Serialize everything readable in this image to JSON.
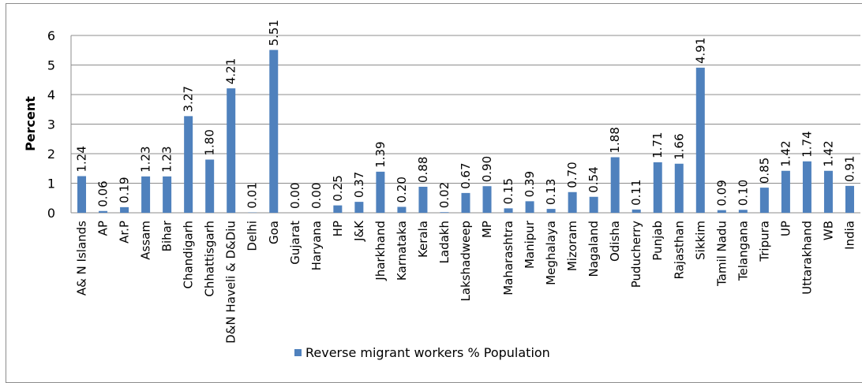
{
  "chart_data": {
    "type": "bar",
    "ylabel": "Percent",
    "xlabel": "",
    "title": "",
    "ylim": [
      0,
      6
    ],
    "yticks": [
      0,
      1,
      2,
      3,
      4,
      5,
      6
    ],
    "grid": true,
    "legend_position": "bottom",
    "color": "#4f81bd",
    "categories": [
      "A& N Islands",
      "AP",
      "Ar.P",
      "Assam",
      "Bihar",
      "Chandigarh",
      "Chhattisgarh",
      "D&N Haveli & D&Diu",
      "Delhi",
      "Goa",
      "Gujarat",
      "Haryana",
      "HP",
      "J&K",
      "Jharkhand",
      "Karnataka",
      "Kerala",
      "Ladakh",
      "Lakshadweep",
      "MP",
      "Maharashtra",
      "Manipur",
      "Meghalaya",
      "Mizoram",
      "Nagaland",
      "Odisha",
      "Puducherry",
      "Punjab",
      "Rajasthan",
      "Sikkim",
      "Tamil Nadu",
      "Telangana",
      "Tripura",
      "UP",
      "Uttarakhand",
      "WB",
      "India"
    ],
    "series": [
      {
        "name": "Reverse migrant workers % Population",
        "values": [
          1.24,
          0.06,
          0.19,
          1.23,
          1.23,
          3.27,
          1.8,
          4.21,
          0.01,
          5.51,
          0.0,
          0.0,
          0.25,
          0.37,
          1.39,
          0.2,
          0.88,
          0.02,
          0.67,
          0.9,
          0.15,
          0.39,
          0.13,
          0.7,
          0.54,
          1.88,
          0.11,
          1.71,
          1.66,
          4.91,
          0.09,
          0.1,
          0.85,
          1.42,
          1.74,
          1.42,
          0.91
        ]
      }
    ]
  }
}
